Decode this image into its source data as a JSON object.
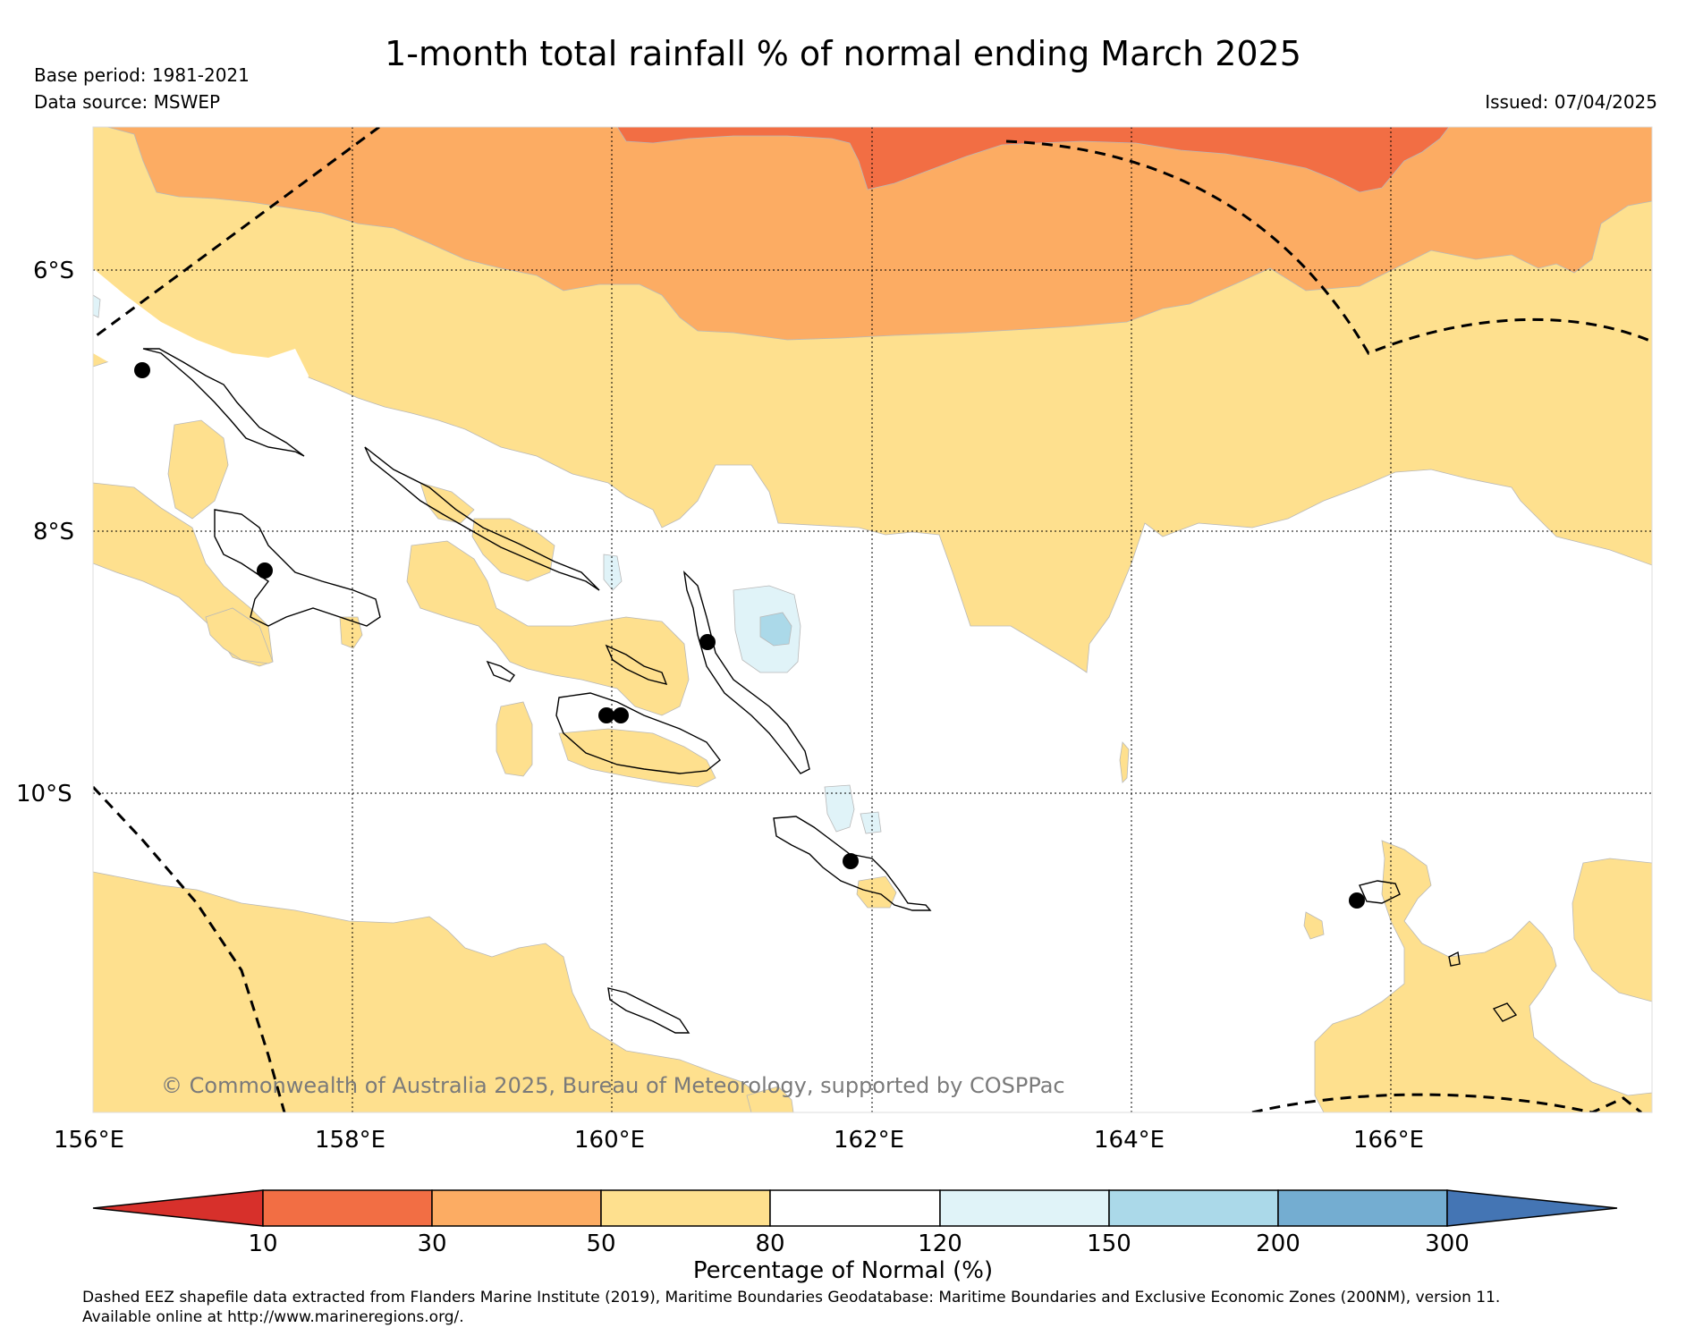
{
  "title": "1-month total rainfall % of normal ending March 2025",
  "base_period": "Base period: 1981-2021",
  "data_source": "Data source: MSWEP",
  "issued": "Issued: 07/04/2025",
  "copyright": "© Commonwealth of Australia 2025, Bureau of Meteorology, supported by COSPPac",
  "latitude_labels": [
    "6°S",
    "8°S",
    "10°S"
  ],
  "longitude_labels": [
    "156°E",
    "158°E",
    "160°E",
    "162°E",
    "164°E",
    "166°E"
  ],
  "colorbar": {
    "title": "Percentage of Normal (%)",
    "ticks": [
      "10",
      "30",
      "50",
      "80",
      "120",
      "150",
      "200",
      "300"
    ],
    "colors": [
      "#d7302b",
      "#f26e44",
      "#fcac63",
      "#fee08e",
      "#ffffff",
      "#e0f3f8",
      "#abd9e9",
      "#74add1",
      "#4475b4"
    ]
  },
  "footnote_line1": "Dashed EEZ shapefile data extracted from Flanders Marine Institute (2019), Maritime Boundaries Geodatabase: Maritime Boundaries and Exclusive Economic Zones (200NM), version 11.",
  "footnote_line2": "Available online at http://www.marineregions.org/."
}
